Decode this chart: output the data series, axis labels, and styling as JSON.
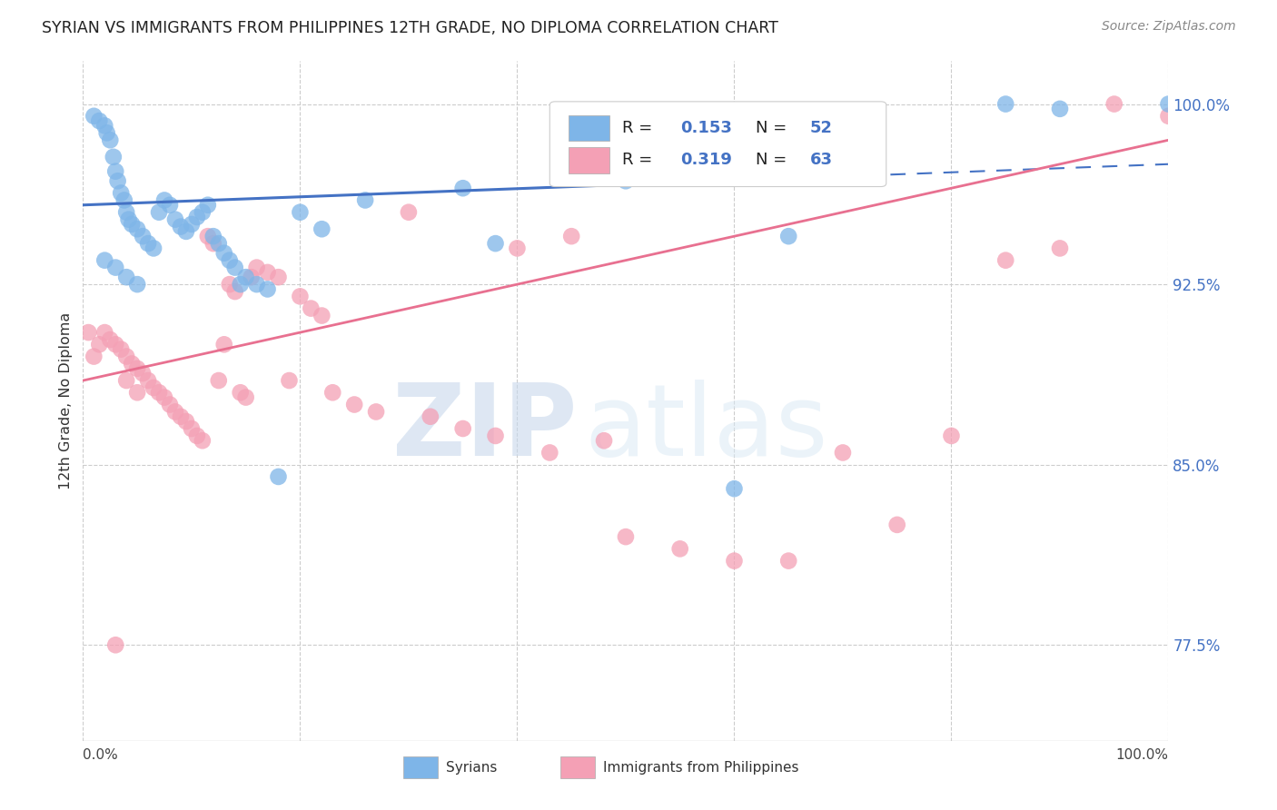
{
  "title": "SYRIAN VS IMMIGRANTS FROM PHILIPPINES 12TH GRADE, NO DIPLOMA CORRELATION CHART",
  "source": "Source: ZipAtlas.com",
  "ylabel": "12th Grade, No Diploma",
  "y_ticks": [
    77.5,
    85.0,
    92.5,
    100.0
  ],
  "y_tick_labels": [
    "77.5%",
    "85.0%",
    "92.5%",
    "100.0%"
  ],
  "legend_label1": "Syrians",
  "legend_label2": "Immigrants from Philippines",
  "R1": 0.153,
  "N1": 52,
  "R2": 0.319,
  "N2": 63,
  "color1": "#7EB5E8",
  "color2": "#F4A0B5",
  "line_color1": "#4472C4",
  "line_color2": "#E87090",
  "xmin": 0.0,
  "xmax": 100.0,
  "ymin": 73.5,
  "ymax": 101.8,
  "blue_x": [
    1.0,
    1.5,
    2.0,
    2.2,
    2.5,
    2.8,
    3.0,
    3.2,
    3.5,
    3.8,
    4.0,
    4.2,
    4.5,
    5.0,
    5.5,
    6.0,
    6.5,
    7.0,
    7.5,
    8.0,
    8.5,
    9.0,
    9.5,
    10.0,
    10.5,
    11.0,
    11.5,
    12.0,
    12.5,
    13.0,
    13.5,
    14.0,
    14.5,
    15.0,
    16.0,
    17.0,
    18.0,
    20.0,
    22.0,
    26.0,
    35.0,
    38.0,
    50.0,
    60.0,
    65.0,
    85.0,
    90.0,
    100.0,
    2.0,
    3.0,
    4.0,
    5.0
  ],
  "blue_y": [
    99.5,
    99.3,
    99.1,
    98.8,
    98.5,
    97.8,
    97.2,
    96.8,
    96.3,
    96.0,
    95.5,
    95.2,
    95.0,
    94.8,
    94.5,
    94.2,
    94.0,
    95.5,
    96.0,
    95.8,
    95.2,
    94.9,
    94.7,
    95.0,
    95.3,
    95.5,
    95.8,
    94.5,
    94.2,
    93.8,
    93.5,
    93.2,
    92.5,
    92.8,
    92.5,
    92.3,
    84.5,
    95.5,
    94.8,
    96.0,
    96.5,
    94.2,
    96.8,
    84.0,
    94.5,
    100.0,
    99.8,
    100.0,
    93.5,
    93.2,
    92.8,
    92.5
  ],
  "pink_x": [
    0.5,
    1.0,
    1.5,
    2.0,
    2.5,
    3.0,
    3.5,
    4.0,
    4.5,
    5.0,
    5.5,
    6.0,
    6.5,
    7.0,
    7.5,
    8.0,
    8.5,
    9.0,
    9.5,
    10.0,
    10.5,
    11.0,
    11.5,
    12.0,
    12.5,
    13.0,
    13.5,
    14.0,
    14.5,
    15.0,
    15.5,
    16.0,
    17.0,
    18.0,
    19.0,
    20.0,
    21.0,
    22.0,
    23.0,
    25.0,
    27.0,
    30.0,
    32.0,
    35.0,
    38.0,
    40.0,
    43.0,
    45.0,
    48.0,
    50.0,
    55.0,
    60.0,
    65.0,
    70.0,
    75.0,
    80.0,
    85.0,
    90.0,
    95.0,
    100.0,
    3.0,
    4.0,
    5.0
  ],
  "pink_y": [
    90.5,
    89.5,
    90.0,
    90.5,
    90.2,
    90.0,
    89.8,
    89.5,
    89.2,
    89.0,
    88.8,
    88.5,
    88.2,
    88.0,
    87.8,
    87.5,
    87.2,
    87.0,
    86.8,
    86.5,
    86.2,
    86.0,
    94.5,
    94.2,
    88.5,
    90.0,
    92.5,
    92.2,
    88.0,
    87.8,
    92.8,
    93.2,
    93.0,
    92.8,
    88.5,
    92.0,
    91.5,
    91.2,
    88.0,
    87.5,
    87.2,
    95.5,
    87.0,
    86.5,
    86.2,
    94.0,
    85.5,
    94.5,
    86.0,
    82.0,
    81.5,
    81.0,
    81.0,
    85.5,
    82.5,
    86.2,
    93.5,
    94.0,
    100.0,
    99.5,
    77.5,
    88.5,
    88.0
  ],
  "blue_line_x0": 0,
  "blue_line_x1": 100,
  "blue_line_y0": 95.8,
  "blue_line_y1": 97.5,
  "blue_solid_end": 50,
  "pink_line_y0": 88.5,
  "pink_line_y1": 98.5
}
